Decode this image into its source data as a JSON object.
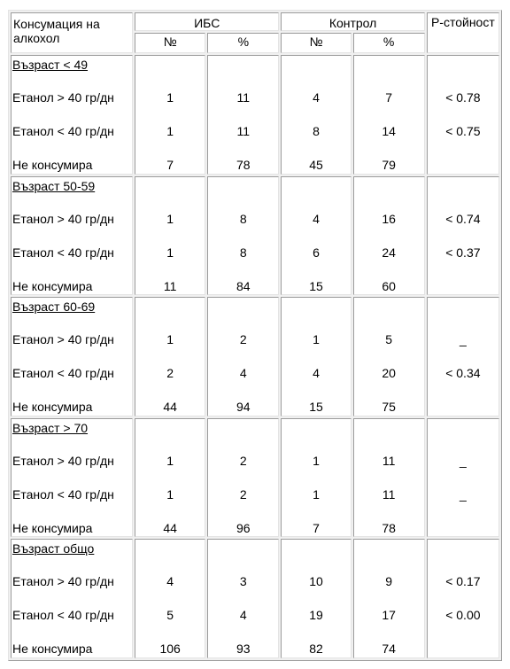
{
  "header": {
    "consumption_label": "Консумация на алкохол",
    "ibs_label": "ИБС",
    "control_label": "Контрол",
    "p_value_label": "P-стойност",
    "num_label": "№",
    "pct_label": "%"
  },
  "groups": [
    {
      "title": "Възраст < 49",
      "rows": [
        {
          "label": "Етанол > 40 гр/дн",
          "ibs_n": "1",
          "ibs_pct": "11",
          "ctrl_n": "4",
          "ctrl_pct": "7",
          "p": "< 0.78"
        },
        {
          "label": "Етанол < 40 гр/дн",
          "ibs_n": "1",
          "ibs_pct": "11",
          "ctrl_n": "8",
          "ctrl_pct": "14",
          "p": "< 0.75"
        },
        {
          "label": "Не консумира",
          "ibs_n": "7",
          "ibs_pct": "78",
          "ctrl_n": "45",
          "ctrl_pct": "79",
          "p": ""
        }
      ]
    },
    {
      "title": "Възраст 50-59",
      "rows": [
        {
          "label": "Етанол > 40 гр/дн",
          "ibs_n": "1",
          "ibs_pct": "8",
          "ctrl_n": "4",
          "ctrl_pct": "16",
          "p": "< 0.74"
        },
        {
          "label": "Етанол < 40 гр/дн",
          "ibs_n": "1",
          "ibs_pct": "8",
          "ctrl_n": "6",
          "ctrl_pct": "24",
          "p": "< 0.37"
        },
        {
          "label": "Не консумира",
          "ibs_n": "11",
          "ibs_pct": "84",
          "ctrl_n": "15",
          "ctrl_pct": "60",
          "p": ""
        }
      ]
    },
    {
      "title": "Възраст 60-69",
      "rows": [
        {
          "label": "Етанол > 40 гр/дн",
          "ibs_n": "1",
          "ibs_pct": "2",
          "ctrl_n": "1",
          "ctrl_pct": "5",
          "p": "_"
        },
        {
          "label": "Етанол < 40 гр/дн",
          "ibs_n": "2",
          "ibs_pct": "4",
          "ctrl_n": "4",
          "ctrl_pct": "20",
          "p": "< 0.34"
        },
        {
          "label": "Не консумира",
          "ibs_n": "44",
          "ibs_pct": "94",
          "ctrl_n": "15",
          "ctrl_pct": "75",
          "p": ""
        }
      ]
    },
    {
      "title": "Възраст > 70",
      "rows": [
        {
          "label": "Етанол > 40 гр/дн",
          "ibs_n": "1",
          "ibs_pct": "2",
          "ctrl_n": "1",
          "ctrl_pct": "11",
          "p": "_"
        },
        {
          "label": "Етанол < 40 гр/дн",
          "ibs_n": "1",
          "ibs_pct": "2",
          "ctrl_n": "1",
          "ctrl_pct": "11",
          "p": "_"
        },
        {
          "label": "Не консумира",
          "ibs_n": "44",
          "ibs_pct": "96",
          "ctrl_n": "7",
          "ctrl_pct": "78",
          "p": ""
        }
      ]
    },
    {
      "title": "Възраст общо",
      "rows": [
        {
          "label": "Етанол > 40 гр/дн",
          "ibs_n": "4",
          "ibs_pct": "3",
          "ctrl_n": "10",
          "ctrl_pct": "9",
          "p": "< 0.17"
        },
        {
          "label": "Етанол < 40 гр/дн",
          "ibs_n": "5",
          "ibs_pct": "4",
          "ctrl_n": "19",
          "ctrl_pct": "17",
          "p": "< 0.00"
        },
        {
          "label": "Не консумира",
          "ibs_n": "106",
          "ibs_pct": "93",
          "ctrl_n": "82",
          "ctrl_pct": "74",
          "p": ""
        }
      ]
    }
  ]
}
